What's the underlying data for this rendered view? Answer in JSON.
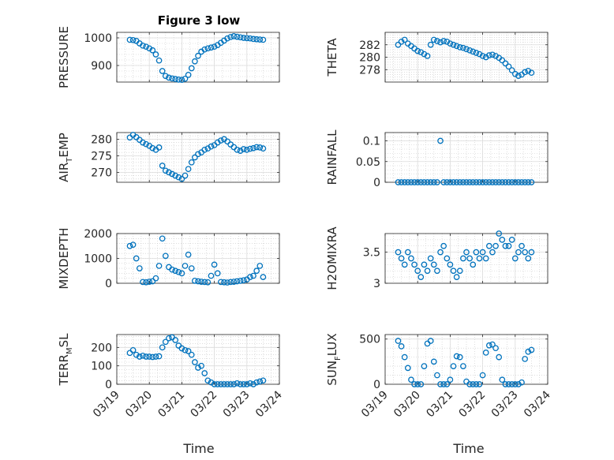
{
  "figure": {
    "title": "Figure 3 low",
    "x_label": "Time"
  },
  "colors": {
    "marker": "#0072BD",
    "axis": "#262626",
    "grid": "#c8c8c8"
  },
  "x_tick_labels": [
    "03/19",
    "03/20",
    "03/21",
    "03/22",
    "03/23",
    "03/24"
  ],
  "chart_data": [
    {
      "type": "scatter",
      "ylabel": "PRESSURE",
      "title": "Figure 3 low",
      "xlim": [
        0,
        5
      ],
      "ylim": [
        840,
        1020
      ],
      "yticks": [
        900,
        1000
      ],
      "ytick_labels": [
        "900",
        "1000"
      ],
      "x": [
        0.4,
        0.5,
        0.6,
        0.7,
        0.8,
        0.9,
        1.0,
        1.1,
        1.2,
        1.3,
        1.4,
        1.5,
        1.6,
        1.7,
        1.8,
        1.9,
        2.0,
        2.1,
        2.2,
        2.3,
        2.4,
        2.5,
        2.6,
        2.7,
        2.8,
        2.9,
        3.0,
        3.1,
        3.2,
        3.3,
        3.4,
        3.5,
        3.6,
        3.7,
        3.8,
        3.9,
        4.0,
        4.1,
        4.2,
        4.3,
        4.4,
        4.5
      ],
      "y": [
        993,
        992,
        989,
        980,
        972,
        968,
        962,
        955,
        940,
        918,
        880,
        862,
        856,
        853,
        851,
        849,
        848,
        852,
        866,
        890,
        915,
        935,
        950,
        958,
        962,
        965,
        968,
        974,
        982,
        990,
        998,
        1003,
        1006,
        1004,
        1002,
        1000,
        999,
        998,
        996,
        995,
        994,
        993
      ]
    },
    {
      "type": "scatter",
      "ylabel": "THETA",
      "xlim": [
        0,
        5
      ],
      "ylim": [
        276,
        284
      ],
      "yticks": [
        278,
        280,
        282
      ],
      "ytick_labels": [
        "278",
        "280",
        "282"
      ],
      "x": [
        0.4,
        0.5,
        0.6,
        0.7,
        0.8,
        0.9,
        1.0,
        1.1,
        1.2,
        1.3,
        1.4,
        1.5,
        1.6,
        1.7,
        1.8,
        1.9,
        2.0,
        2.1,
        2.2,
        2.3,
        2.4,
        2.5,
        2.6,
        2.7,
        2.8,
        2.9,
        3.0,
        3.1,
        3.2,
        3.3,
        3.4,
        3.5,
        3.6,
        3.7,
        3.8,
        3.9,
        4.0,
        4.1,
        4.2,
        4.3,
        4.4,
        4.5
      ],
      "y": [
        282,
        282.5,
        282.8,
        282.2,
        281.8,
        281.4,
        281.0,
        280.8,
        280.5,
        280.2,
        282.0,
        282.8,
        282.6,
        282.4,
        282.6,
        282.5,
        282.2,
        282.0,
        281.8,
        281.6,
        281.5,
        281.3,
        281.1,
        280.9,
        280.7,
        280.5,
        280.2,
        280.0,
        280.3,
        280.4,
        280.2,
        279.9,
        279.5,
        279.0,
        278.5,
        277.9,
        277.3,
        277.0,
        277.2,
        277.6,
        277.8,
        277.5
      ]
    },
    {
      "type": "scatter",
      "ylabel": "AIR_TEMP",
      "ylabel_parts": {
        "main": "AIR",
        "sub": "T",
        "rest": "EMP"
      },
      "xlim": [
        0,
        5
      ],
      "ylim": [
        267,
        282
      ],
      "yticks": [
        270,
        275,
        280
      ],
      "ytick_labels": [
        "270",
        "275",
        "280"
      ],
      "x": [
        0.4,
        0.5,
        0.6,
        0.7,
        0.8,
        0.9,
        1.0,
        1.1,
        1.2,
        1.3,
        1.4,
        1.5,
        1.6,
        1.7,
        1.8,
        1.9,
        2.0,
        2.1,
        2.2,
        2.3,
        2.4,
        2.5,
        2.6,
        2.7,
        2.8,
        2.9,
        3.0,
        3.1,
        3.2,
        3.3,
        3.4,
        3.5,
        3.6,
        3.7,
        3.8,
        3.9,
        4.0,
        4.1,
        4.2,
        4.3,
        4.4,
        4.5
      ],
      "y": [
        280.5,
        281.3,
        280.6,
        279.8,
        279.0,
        278.5,
        278.0,
        277.3,
        276.8,
        277.5,
        272.0,
        270.5,
        270.0,
        269.5,
        269.0,
        268.5,
        268.0,
        269.0,
        271.0,
        273.0,
        274.5,
        275.5,
        276.0,
        276.8,
        277.2,
        277.8,
        278.2,
        279.0,
        279.6,
        280.0,
        279.3,
        278.4,
        277.6,
        276.8,
        276.5,
        277.0,
        276.8,
        277.1,
        277.3,
        277.6,
        277.5,
        277.2
      ]
    },
    {
      "type": "scatter",
      "ylabel": "RAINFALL",
      "xlim": [
        0,
        5
      ],
      "ylim": [
        0,
        0.12
      ],
      "yticks": [
        0,
        0.05,
        0.1
      ],
      "ytick_labels": [
        "0",
        "0.05",
        "0.1"
      ],
      "x": [
        0.4,
        0.5,
        0.6,
        0.7,
        0.8,
        0.9,
        1.0,
        1.1,
        1.2,
        1.3,
        1.4,
        1.5,
        1.6,
        1.7,
        1.8,
        1.9,
        2.0,
        2.1,
        2.2,
        2.3,
        2.4,
        2.5,
        2.6,
        2.7,
        2.8,
        2.9,
        3.0,
        3.1,
        3.2,
        3.3,
        3.4,
        3.5,
        3.6,
        3.7,
        3.8,
        3.9,
        4.0,
        4.1,
        4.2,
        4.3,
        4.4,
        4.5
      ],
      "y": [
        0,
        0,
        0,
        0,
        0,
        0,
        0,
        0,
        0,
        0,
        0,
        0,
        0,
        0.1,
        0,
        0,
        0,
        0,
        0,
        0,
        0,
        0,
        0,
        0,
        0,
        0,
        0,
        0,
        0,
        0,
        0,
        0,
        0,
        0,
        0,
        0,
        0,
        0,
        0,
        0,
        0,
        0
      ]
    },
    {
      "type": "scatter",
      "ylabel": "MIXDEPTH",
      "xlim": [
        0,
        5
      ],
      "ylim": [
        0,
        2000
      ],
      "yticks": [
        0,
        1000,
        2000
      ],
      "ytick_labels": [
        "0",
        "1000",
        "2000"
      ],
      "x": [
        0.4,
        0.5,
        0.6,
        0.7,
        0.8,
        0.9,
        1.0,
        1.1,
        1.2,
        1.3,
        1.4,
        1.5,
        1.6,
        1.7,
        1.8,
        1.9,
        2.0,
        2.1,
        2.2,
        2.3,
        2.4,
        2.5,
        2.6,
        2.7,
        2.8,
        2.9,
        3.0,
        3.1,
        3.2,
        3.3,
        3.4,
        3.5,
        3.6,
        3.7,
        3.8,
        3.9,
        4.0,
        4.1,
        4.2,
        4.3,
        4.4,
        4.5
      ],
      "y": [
        1500,
        1550,
        1000,
        600,
        50,
        40,
        60,
        80,
        200,
        700,
        1800,
        1100,
        650,
        550,
        500,
        450,
        400,
        700,
        1150,
        600,
        100,
        80,
        60,
        50,
        40,
        300,
        750,
        400,
        50,
        40,
        30,
        50,
        60,
        80,
        100,
        120,
        150,
        250,
        300,
        500,
        700,
        250
      ]
    },
    {
      "type": "scatter",
      "ylabel": "H2OMIXRA",
      "xlim": [
        0,
        5
      ],
      "ylim": [
        3,
        3.8
      ],
      "yticks": [
        3,
        3.5
      ],
      "ytick_labels": [
        "3",
        "3.5"
      ],
      "x": [
        0.4,
        0.5,
        0.6,
        0.7,
        0.8,
        0.9,
        1.0,
        1.1,
        1.2,
        1.3,
        1.4,
        1.5,
        1.6,
        1.7,
        1.8,
        1.9,
        2.0,
        2.1,
        2.2,
        2.3,
        2.4,
        2.5,
        2.6,
        2.7,
        2.8,
        2.9,
        3.0,
        3.1,
        3.2,
        3.3,
        3.4,
        3.5,
        3.6,
        3.7,
        3.8,
        3.9,
        4.0,
        4.1,
        4.2,
        4.3,
        4.4,
        4.5
      ],
      "y": [
        3.5,
        3.4,
        3.3,
        3.5,
        3.4,
        3.3,
        3.2,
        3.1,
        3.3,
        3.2,
        3.4,
        3.3,
        3.2,
        3.5,
        3.6,
        3.4,
        3.3,
        3.2,
        3.1,
        3.2,
        3.4,
        3.5,
        3.4,
        3.3,
        3.5,
        3.4,
        3.5,
        3.4,
        3.6,
        3.5,
        3.6,
        3.8,
        3.7,
        3.6,
        3.6,
        3.7,
        3.4,
        3.5,
        3.6,
        3.5,
        3.4,
        3.5
      ]
    },
    {
      "type": "scatter",
      "ylabel": "TERR_MSL",
      "ylabel_parts": {
        "main": "TERR",
        "sub": "M",
        "rest": "SL"
      },
      "xlim": [
        0,
        5
      ],
      "ylim": [
        0,
        270
      ],
      "yticks": [
        0,
        100,
        200
      ],
      "ytick_labels": [
        "0",
        "100",
        "200"
      ],
      "x": [
        0.4,
        0.5,
        0.6,
        0.7,
        0.8,
        0.9,
        1.0,
        1.1,
        1.2,
        1.3,
        1.4,
        1.5,
        1.6,
        1.7,
        1.8,
        1.9,
        2.0,
        2.1,
        2.2,
        2.3,
        2.4,
        2.5,
        2.6,
        2.7,
        2.8,
        2.9,
        3.0,
        3.1,
        3.2,
        3.3,
        3.4,
        3.5,
        3.6,
        3.7,
        3.8,
        3.9,
        4.0,
        4.1,
        4.2,
        4.3,
        4.4,
        4.5
      ],
      "y": [
        170,
        185,
        160,
        150,
        155,
        150,
        150,
        148,
        150,
        152,
        200,
        230,
        250,
        255,
        240,
        210,
        195,
        185,
        180,
        160,
        120,
        90,
        100,
        60,
        20,
        10,
        0,
        0,
        0,
        0,
        0,
        0,
        0,
        5,
        0,
        0,
        0,
        5,
        0,
        10,
        15,
        20
      ]
    },
    {
      "type": "scatter",
      "ylabel": "SUN_FLUX",
      "ylabel_parts": {
        "main": "SUN",
        "sub": "F",
        "rest": "LUX"
      },
      "xlim": [
        0,
        5
      ],
      "ylim": [
        0,
        550
      ],
      "yticks": [
        0,
        500
      ],
      "ytick_labels": [
        "0",
        "500"
      ],
      "x": [
        0.4,
        0.5,
        0.6,
        0.7,
        0.8,
        0.9,
        1.0,
        1.1,
        1.2,
        1.3,
        1.4,
        1.5,
        1.6,
        1.7,
        1.8,
        1.9,
        2.0,
        2.1,
        2.2,
        2.3,
        2.4,
        2.5,
        2.6,
        2.7,
        2.8,
        2.9,
        3.0,
        3.1,
        3.2,
        3.3,
        3.4,
        3.5,
        3.6,
        3.7,
        3.8,
        3.9,
        4.0,
        4.1,
        4.2,
        4.3,
        4.4,
        4.5
      ],
      "y": [
        480,
        420,
        300,
        180,
        50,
        0,
        0,
        0,
        200,
        450,
        480,
        250,
        100,
        0,
        0,
        0,
        50,
        200,
        310,
        300,
        200,
        30,
        0,
        0,
        0,
        0,
        100,
        350,
        430,
        440,
        400,
        300,
        50,
        0,
        0,
        0,
        0,
        0,
        20,
        280,
        360,
        380
      ]
    }
  ]
}
